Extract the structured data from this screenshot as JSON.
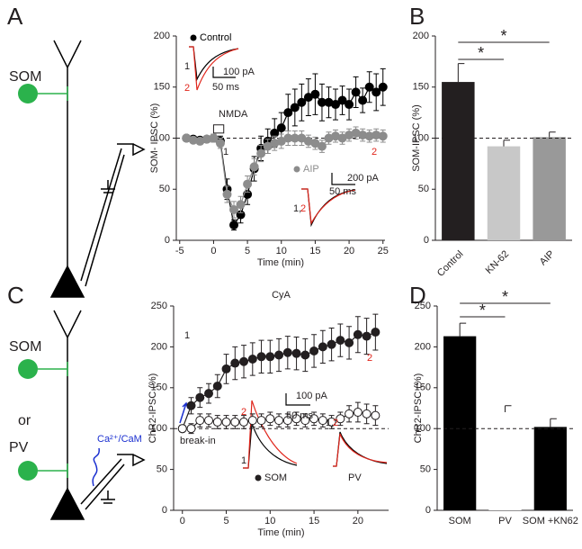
{
  "chart_data": [
    {
      "type": "line",
      "panel_label": "A",
      "y_label": "SOM- IPSC (%)",
      "x_label": "Time (min)",
      "xlim": [
        -5.5,
        25.3
      ],
      "ylim": [
        0,
        200
      ],
      "xticks": [
        -5,
        0,
        5,
        10,
        15,
        20,
        25
      ],
      "yticks": [
        0,
        50,
        100,
        150,
        200
      ],
      "reference_line": 100,
      "x": [
        -4,
        -3,
        -2,
        -1,
        0,
        1,
        2,
        3,
        4,
        5,
        6,
        7,
        8,
        9,
        10,
        11,
        12,
        13,
        14,
        15,
        16,
        17,
        18,
        19,
        20,
        21,
        22,
        23,
        24,
        25
      ],
      "series": [
        {
          "name": "Control",
          "color": "#000000",
          "marker_fill": "#000000",
          "values": [
            100,
            99,
            98,
            99,
            100,
            97,
            50,
            15,
            25,
            45,
            70,
            90,
            97,
            105,
            110,
            125,
            130,
            135,
            140,
            143,
            135,
            135,
            133,
            137,
            133,
            145,
            137,
            150,
            145,
            150
          ],
          "errors": [
            3,
            3,
            3,
            3,
            4,
            5,
            10,
            5,
            8,
            10,
            12,
            12,
            12,
            14,
            15,
            18,
            18,
            18,
            18,
            20,
            18,
            15,
            15,
            14,
            15,
            15,
            12,
            15,
            18,
            18
          ]
        },
        {
          "name": "AIP",
          "color": "#8c8c8c",
          "marker_fill": "#8c8c8c",
          "values": [
            100,
            98,
            97,
            99,
            100,
            95,
            45,
            30,
            35,
            55,
            72,
            85,
            92,
            95,
            97,
            100,
            100,
            100,
            97,
            95,
            92,
            100,
            102,
            100,
            103,
            105,
            103,
            102,
            103,
            102
          ],
          "errors": [
            3,
            3,
            3,
            3,
            4,
            5,
            8,
            8,
            8,
            8,
            8,
            8,
            7,
            7,
            7,
            7,
            7,
            7,
            6,
            6,
            6,
            6,
            6,
            6,
            6,
            6,
            6,
            6,
            6,
            6
          ]
        }
      ],
      "annotations": [
        {
          "text": "NMDA"
        },
        {
          "text": "1"
        },
        {
          "text": "2",
          "color": "#e0251b"
        },
        {
          "text": "1"
        },
        {
          "text": "2",
          "color": "#e0251b"
        },
        {
          "text": "100 pA"
        },
        {
          "text": "50 ms"
        },
        {
          "text": "1,"
        },
        {
          "text": "2",
          "color": "#e0251b"
        },
        {
          "text": "200 pA"
        },
        {
          "text": "50 ms"
        }
      ]
    },
    {
      "type": "bar",
      "panel_label": "B",
      "y_label": "SOM-IPSC (%)",
      "ylim": [
        0,
        200
      ],
      "yticks": [
        0,
        50,
        100,
        150,
        200
      ],
      "reference_line": 100,
      "categories": [
        "Control",
        "KN-62",
        "AIP"
      ],
      "values": [
        155,
        92,
        101
      ],
      "errors": [
        18,
        6,
        5
      ],
      "colors": [
        "#231f20",
        "#c8c8c8",
        "#999999"
      ],
      "significance": [
        {
          "pair": [
            0,
            1
          ],
          "label": "*"
        },
        {
          "pair": [
            0,
            2
          ],
          "label": "*"
        }
      ]
    },
    {
      "type": "line",
      "panel_label": "C",
      "title": "CyA",
      "y_label": "ChR2-IPSC (%)",
      "x_label": "Time (min)",
      "xlim": [
        -1,
        23.5
      ],
      "ylim": [
        0,
        250
      ],
      "xticks": [
        0,
        5,
        10,
        15,
        20
      ],
      "yticks": [
        0,
        50,
        100,
        150,
        200,
        250
      ],
      "reference_line": 100,
      "x": [
        0,
        1,
        2,
        3,
        4,
        5,
        6,
        7,
        8,
        9,
        10,
        11,
        12,
        13,
        14,
        15,
        16,
        17,
        18,
        19,
        20,
        21,
        22
      ],
      "series": [
        {
          "name": "SOM",
          "color": "#231f20",
          "marker_fill": "#231f20",
          "values": [
            100,
            128,
            138,
            143,
            152,
            173,
            180,
            182,
            185,
            188,
            188,
            190,
            193,
            192,
            190,
            195,
            200,
            203,
            208,
            205,
            215,
            213,
            218
          ],
          "errors": [
            4,
            10,
            12,
            12,
            14,
            18,
            20,
            20,
            20,
            20,
            20,
            20,
            20,
            20,
            20,
            20,
            20,
            20,
            20,
            20,
            22,
            22,
            22
          ]
        },
        {
          "name": "PV",
          "color": "#231f20",
          "marker_fill": "#ffffff",
          "values": [
            100,
            100,
            110,
            110,
            108,
            108,
            108,
            108,
            110,
            110,
            112,
            110,
            110,
            112,
            110,
            112,
            110,
            108,
            112,
            118,
            120,
            118,
            116
          ],
          "errors": [
            4,
            6,
            8,
            8,
            8,
            8,
            8,
            8,
            8,
            8,
            8,
            8,
            8,
            8,
            8,
            8,
            8,
            8,
            8,
            10,
            12,
            12,
            12
          ]
        }
      ],
      "annotations": [
        {
          "text": "1"
        },
        {
          "text": "2",
          "color": "#e0251b"
        },
        {
          "text": "break-in"
        },
        {
          "text": "2",
          "color": "#e0251b"
        },
        {
          "text": "1"
        },
        {
          "text": "100 pA"
        },
        {
          "text": "50 ms"
        },
        {
          "text": "1,"
        },
        {
          "text": "2",
          "color": "#e0251b"
        }
      ]
    },
    {
      "type": "bar",
      "panel_label": "D",
      "y_label": "ChR2-IPSC (%)",
      "ylim": [
        0,
        250
      ],
      "yticks": [
        0,
        50,
        100,
        150,
        200,
        250
      ],
      "reference_line": 100,
      "categories": [
        "SOM",
        "PV",
        "SOM +KN62"
      ],
      "values": [
        213,
        120,
        102
      ],
      "errors": [
        16,
        8,
        10
      ],
      "colors": [
        "#000000",
        "#ffffff",
        "#000000"
      ],
      "significance": [
        {
          "pair": [
            0,
            1
          ],
          "label": "*"
        },
        {
          "pair": [
            0,
            2
          ],
          "label": "*"
        }
      ]
    }
  ],
  "schematic_a": {
    "cell": "SOM"
  },
  "schematic_c": {
    "cell_1": "SOM",
    "conjunction": "or",
    "cell_2": "PV",
    "signal": "Ca²⁺/CaM"
  }
}
